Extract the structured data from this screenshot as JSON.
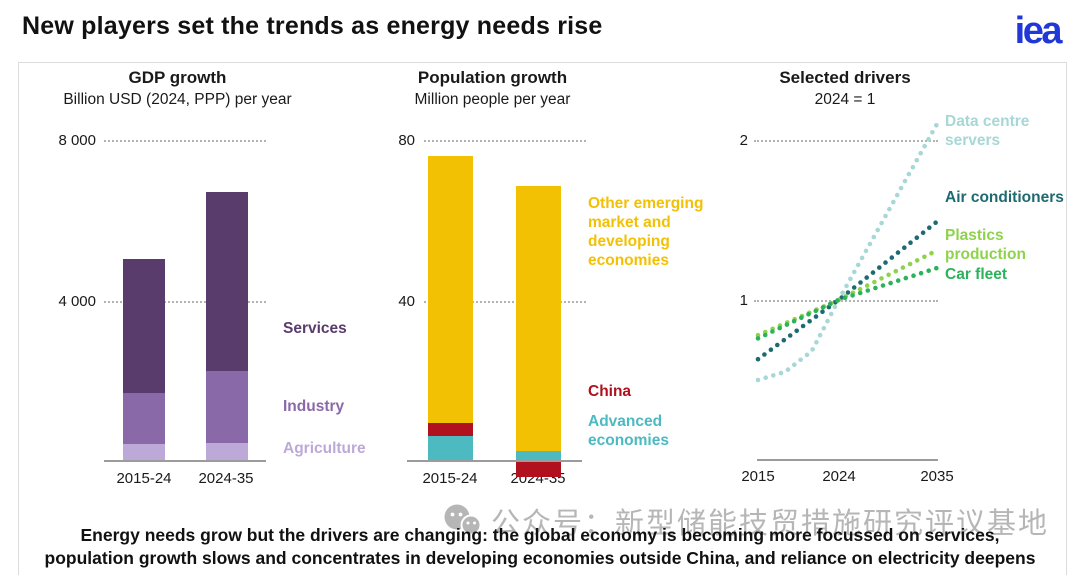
{
  "page": {
    "title": "New players set the trends as energy needs rise",
    "logo_text": "iea",
    "logo_color": "#2038d8"
  },
  "chart_data": [
    {
      "type": "bar",
      "stacked": true,
      "title": "GDP growth",
      "subtitle": "Billion USD (2024, PPP) per year",
      "categories": [
        "2015-24",
        "2024-35"
      ],
      "series": [
        {
          "name": "Agriculture",
          "color": "#bda9d7",
          "values": [
            420,
            450
          ]
        },
        {
          "name": "Industry",
          "color": "#8a69a9",
          "values": [
            1290,
            1800
          ]
        },
        {
          "name": "Services",
          "color": "#593b6c",
          "values": [
            3340,
            4480
          ]
        }
      ],
      "ytick_labels": [
        "4 000",
        "8 000"
      ],
      "ytick_values": [
        4000,
        8000
      ],
      "ylim": [
        0,
        8800
      ],
      "grid": "dotted horizontal",
      "legend_position": "right"
    },
    {
      "type": "bar",
      "stacked": true,
      "title": "Population growth",
      "subtitle": "Million people per year",
      "categories": [
        "2015-24",
        "2024-35"
      ],
      "series": [
        {
          "name": "Advanced economies",
          "color": "#4db9c1",
          "values": [
            6.2,
            2.5
          ]
        },
        {
          "name": "China",
          "color": "#b1101f",
          "values": [
            3.3,
            -4
          ]
        },
        {
          "name": "Other emerging market and developing economies",
          "color": "#f3c104",
          "values": [
            66.8,
            66.3
          ]
        }
      ],
      "ytick_labels": [
        "40",
        "80"
      ],
      "ytick_values": [
        40,
        80
      ],
      "ylim": [
        -6,
        88
      ],
      "grid": "dotted horizontal",
      "legend_position": "right"
    },
    {
      "type": "line",
      "title": "Selected drivers",
      "subtitle": "2024 = 1",
      "line_style": "dotted",
      "x_tick_labels": [
        "2015",
        "2024",
        "2035"
      ],
      "x_tick_values": [
        2015,
        2024,
        2035
      ],
      "x_range": [
        2015,
        2035
      ],
      "ytick_labels": [
        "1",
        "2"
      ],
      "ytick_values": [
        1,
        2
      ],
      "ylim": [
        0.45,
        2.15
      ],
      "index_note": "all series pass through 1.0 in 2024",
      "series": [
        {
          "name": "Data centre servers",
          "color": "#a7d7d6",
          "points": [
            [
              2015,
              0.5
            ],
            [
              2018,
              0.55
            ],
            [
              2021,
              0.68
            ],
            [
              2024,
              1.0
            ],
            [
              2035,
              2.1
            ]
          ]
        },
        {
          "name": "Air conditioners",
          "color": "#1e6a72",
          "points": [
            [
              2015,
              0.63
            ],
            [
              2024,
              1.0
            ],
            [
              2035,
              1.49
            ]
          ]
        },
        {
          "name": "Plastics production",
          "color": "#8fd34c",
          "points": [
            [
              2015,
              0.78
            ],
            [
              2024,
              1.0
            ],
            [
              2035,
              1.31
            ]
          ]
        },
        {
          "name": "Car fleet",
          "color": "#2cb25b",
          "points": [
            [
              2015,
              0.76
            ],
            [
              2024,
              1.0
            ],
            [
              2035,
              1.2
            ]
          ]
        }
      ],
      "legend_position": "right"
    }
  ],
  "caption": {
    "line1": "Energy needs grow but the drivers are changing: the global economy is becoming more focussed on services,",
    "line2": "population growth slows and concentrates in developing economies outside China, and reliance on electricity deepens"
  },
  "watermark": {
    "label": "公众号：新型储能技贸措施研究评议基地"
  }
}
